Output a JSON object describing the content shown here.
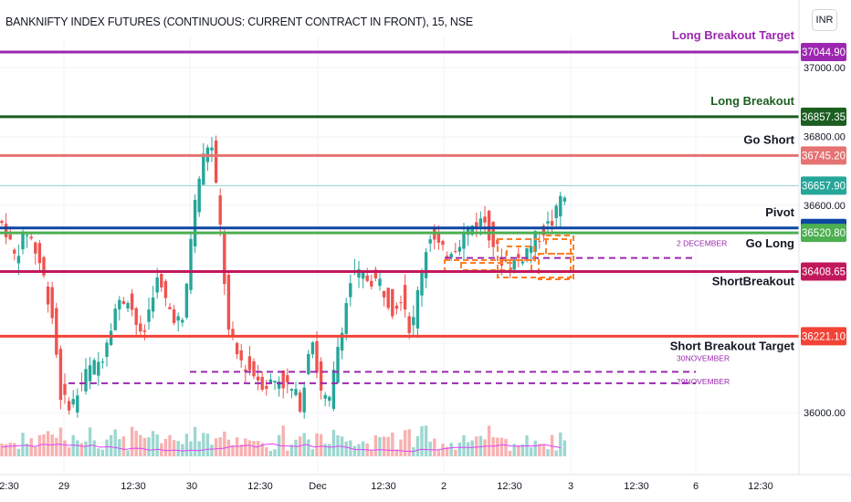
{
  "header": {
    "title": "BANKNIFTY INDEX FUTURES (CONTINUOUS: CURRENT CONTRACT IN FRONT), 15, NSE",
    "currency": "INR"
  },
  "price_axis": {
    "ticks": [
      "37000.00",
      "36800.00",
      "36600.00",
      "36000.00"
    ]
  },
  "time_axis": {
    "ticks": [
      "2:30",
      "29",
      "12:30",
      "30",
      "12:30",
      "Dec",
      "12:30",
      "2",
      "12:30",
      "3",
      "12:30",
      "6",
      "12:30"
    ]
  },
  "levels": [
    {
      "name": "Long Breakout Target",
      "price": "37044.90",
      "value": 37044.9,
      "color": "#9c27b0"
    },
    {
      "name": "Long Breakout",
      "price": "36857.35",
      "value": 36857.35,
      "color": "#1b5e20"
    },
    {
      "name": "Go Short",
      "price": "36745.20",
      "value": 36745.2,
      "color": "#e57373"
    },
    {
      "name": "",
      "price": "36657.90",
      "value": 36657.9,
      "color": "#26a69a"
    },
    {
      "name": "Pivot",
      "price": "36535.00",
      "value": 36535.0,
      "color": "#0d47a1"
    },
    {
      "name": "Go Long",
      "price": "36520.80",
      "value": 36520.8,
      "color": "#4caf50"
    },
    {
      "name": "ShortBreakout",
      "price": "36408.65",
      "value": 36408.65,
      "color": "#c2185b"
    },
    {
      "name": "Short Breakout Target",
      "price": "36221.10",
      "value": 36221.1,
      "color": "#f44336"
    }
  ],
  "session_lines": [
    {
      "label": "2 DECEMBER",
      "value": 36448
    },
    {
      "label": "30NOVEMBER",
      "value": 36118
    },
    {
      "label": "29NOVEMBER",
      "value": 36085
    }
  ],
  "colors": {
    "up": "#26a69a",
    "down": "#ef5350",
    "grid": "#f0f3fa",
    "session": "#9c27b0",
    "box": "#ff7f27",
    "ma": "#e040fb"
  }
}
